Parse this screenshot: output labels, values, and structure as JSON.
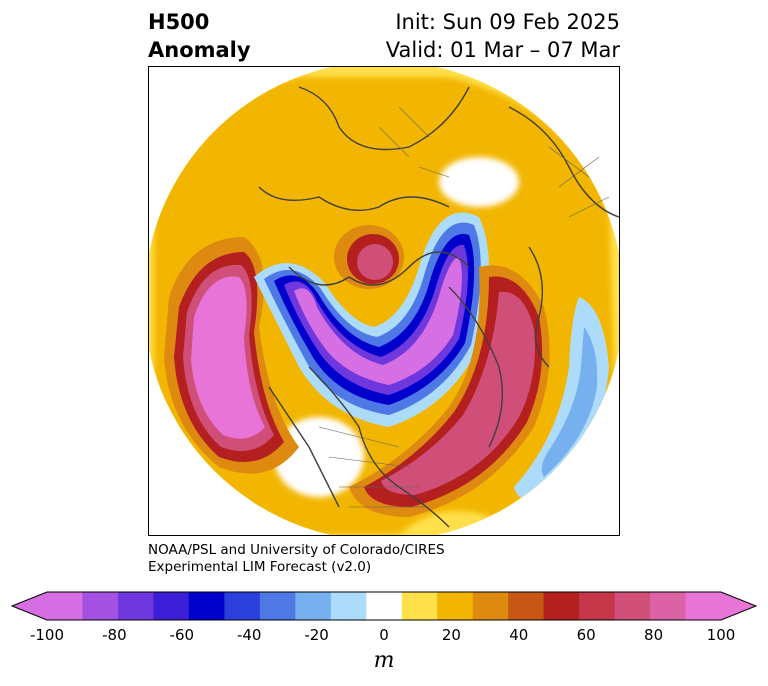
{
  "title": {
    "left_line1": "H500",
    "left_line2": "Anomaly",
    "right_line1": "Init: Sun 09 Feb 2025",
    "right_line2": "Valid: 01 Mar – 07 Mar"
  },
  "credit": {
    "line1": "NOAA/PSL and University of Colorado/CIRES",
    "line2": "Experimental LIM Forecast (v2.0)"
  },
  "colorbar": {
    "unit": "m",
    "ticks": [
      "-100",
      "-80",
      "-60",
      "-40",
      "-20",
      "0",
      "20",
      "40",
      "60",
      "80",
      "100"
    ],
    "colors": [
      "#d56fe3",
      "#a251e0",
      "#6f38de",
      "#3b1ed6",
      "#0000cd",
      "#2a3fdc",
      "#4d78e6",
      "#76b0ef",
      "#addbfa",
      "#ffffff",
      "#ffe04a",
      "#f2b600",
      "#de8910",
      "#c85716",
      "#b41f20",
      "#c43648",
      "#d04f78",
      "#dc62a6",
      "#e874d8"
    ],
    "min_color": "#d56fe3",
    "max_color": "#e874d8"
  },
  "map": {
    "projection": "north-polar-stereographic",
    "coastlines": "#404040"
  }
}
